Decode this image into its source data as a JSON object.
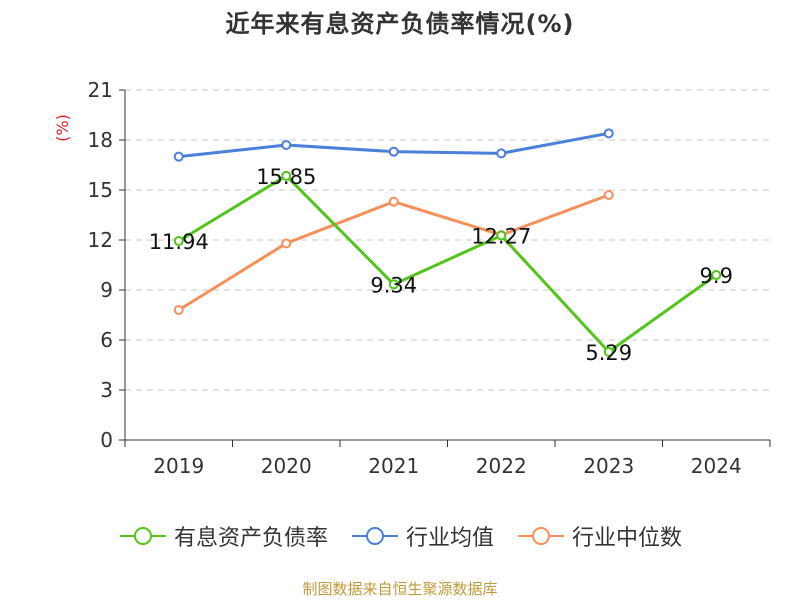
{
  "chart_data": {
    "type": "line",
    "title": "近年来有息资产负债率情况(%)",
    "ylabel": "(%)",
    "xlabel": "",
    "categories": [
      "2019",
      "2020",
      "2021",
      "2022",
      "2023",
      "2024"
    ],
    "ylim": [
      0,
      21
    ],
    "yticks": [
      0,
      3,
      6,
      9,
      12,
      15,
      18,
      21
    ],
    "grid": "horizontal-dashed",
    "legend_position": "bottom",
    "series": [
      {
        "name": "有息资产负债率",
        "color": "#52c41a",
        "values": [
          11.94,
          15.85,
          9.34,
          12.27,
          5.29,
          9.9
        ],
        "labels": [
          "11.94",
          "15.85",
          "9.34",
          "12.27",
          "5.29",
          "9.9"
        ]
      },
      {
        "name": "行业均值",
        "color": "#4a7fdc",
        "values": [
          17.0,
          17.7,
          17.3,
          17.2,
          18.4,
          null
        ]
      },
      {
        "name": "行业中位数",
        "color": "#f5905a",
        "values": [
          7.8,
          11.8,
          14.3,
          12.3,
          14.7,
          null
        ]
      }
    ]
  },
  "source_note": "制图数据来自恒生聚源数据库"
}
